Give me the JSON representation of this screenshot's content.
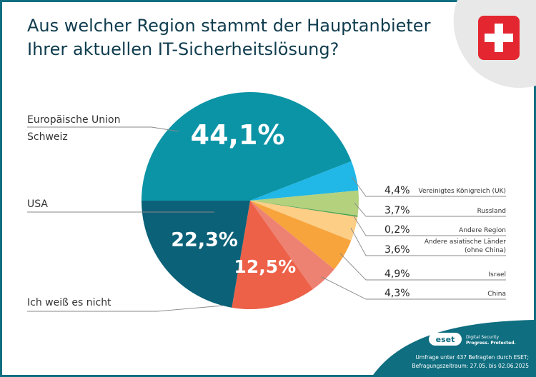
{
  "header": {
    "title_line1": "Aus welcher Region stammt der Hauptanbieter",
    "title_line2": "Ihrer aktuellen IT-Sicherheitslösung?",
    "flag": "swiss-flag-icon"
  },
  "colors": {
    "frame": "#0f6e80",
    "title": "#0f3c4e",
    "blob": "#e8e8e8",
    "flag_red": "#e3262f"
  },
  "chart_data": {
    "type": "pie",
    "title": "Aus welcher Region stammt der Hauptanbieter Ihrer aktuellen IT-Sicherheitslösung?",
    "slices": [
      {
        "name": "Schweiz",
        "value": 44.1,
        "label": "44,1%",
        "color": "#0b94a6",
        "side": "left"
      },
      {
        "name": "Vereinigtes Königreich (UK)",
        "value": 4.4,
        "label": "4,4%",
        "color": "#21b7e7",
        "side": "right"
      },
      {
        "name": "Russland",
        "value": 3.7,
        "label": "3,7%",
        "color": "#b4d17e",
        "side": "right"
      },
      {
        "name": "Andere Region",
        "value": 0.2,
        "label": "0,2%",
        "color": "#4aa34e",
        "side": "right"
      },
      {
        "name": "Andere asiatische Länder (ohne China)",
        "name_line1": "Andere asiatische Länder",
        "name_line2": "(ohne China)",
        "value": 3.6,
        "label": "3,6%",
        "color": "#fcce86",
        "side": "right"
      },
      {
        "name": "Israel",
        "value": 4.9,
        "label": "4,9%",
        "color": "#f7a43c",
        "side": "right"
      },
      {
        "name": "China",
        "value": 4.3,
        "label": "4,3%",
        "color": "#ee8272",
        "side": "right"
      },
      {
        "name": "Ich weiß es nicht",
        "value": 12.5,
        "label": "12,5%",
        "color": "#ec6148",
        "side": "left"
      },
      {
        "name": "USA",
        "value": 22.3,
        "label": "22,3%",
        "color": "#0b6178",
        "side": "left"
      }
    ],
    "extra_labels": [
      {
        "name": "Europäische Union",
        "value": 0.0,
        "side": "left"
      }
    ]
  },
  "footer": {
    "brand": "eset",
    "tag_line1": "Digital Security",
    "tag_line2": "Progress. Protected.",
    "survey_line1": "Umfrage unter 437 Befragten durch ESET;",
    "survey_line2": "Befragungszeitraum: 27.05. bis 02.06.2025"
  }
}
